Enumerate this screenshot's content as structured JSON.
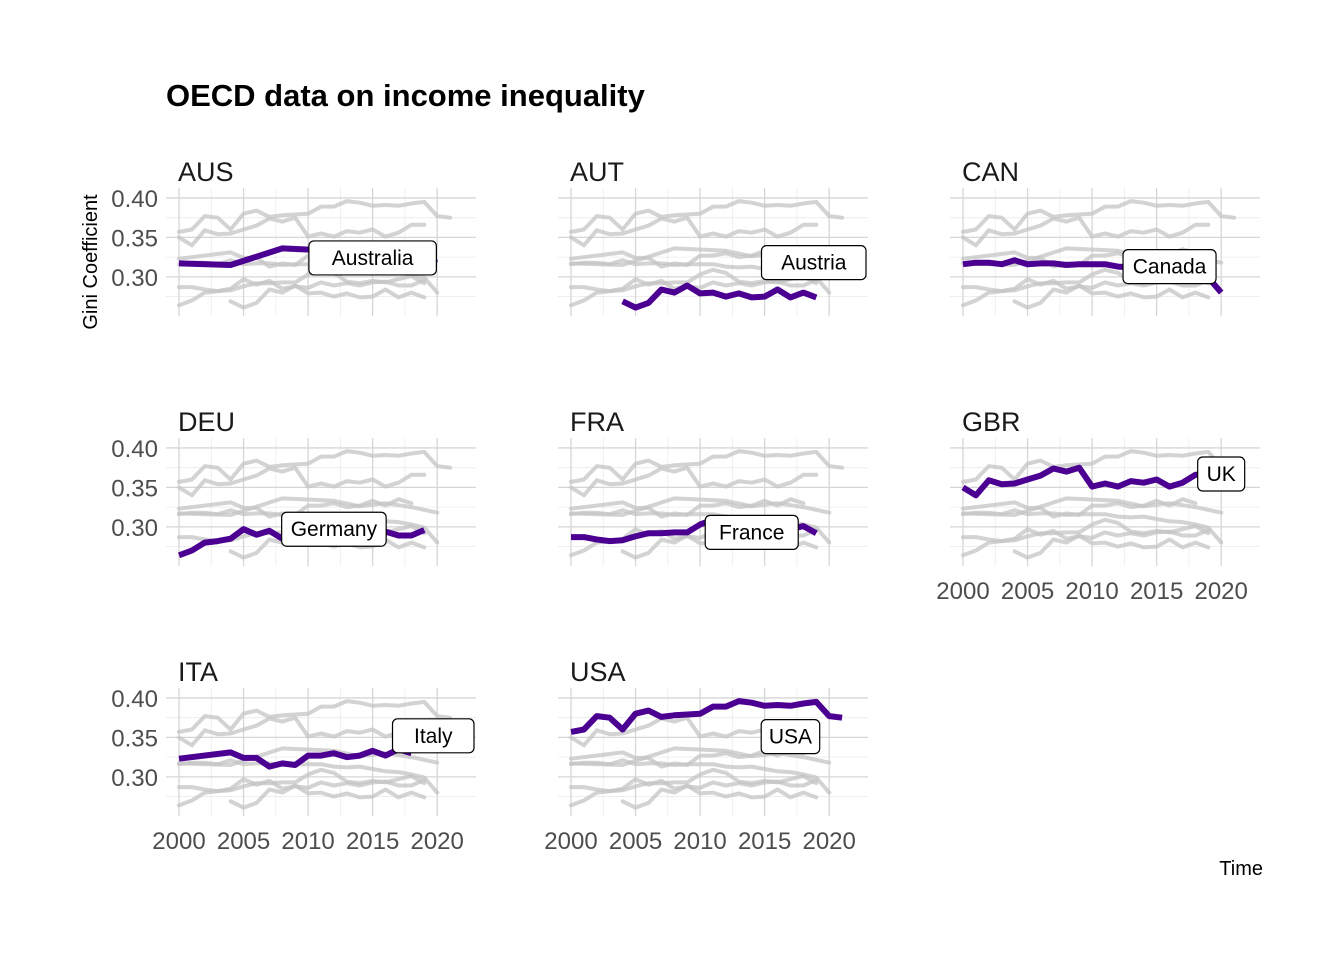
{
  "chart_data": {
    "type": "line",
    "title": "OECD data on income inequality",
    "xlabel": "Time",
    "ylabel": "Gini Coefficient",
    "xlim": [
      2000,
      2022
    ],
    "ylim": [
      0.258,
      0.405
    ],
    "x_ticks": [
      2000,
      2005,
      2010,
      2015,
      2020
    ],
    "y_ticks": [
      0.3,
      0.35,
      0.4
    ],
    "x_tick_labels": [
      "2000",
      "2005",
      "2010",
      "2015",
      "2020"
    ],
    "y_tick_labels": [
      "0.30",
      "0.35",
      "0.40"
    ],
    "grid": true,
    "colors": {
      "highlight": "#4b0092",
      "background_series": "#c4c4c4"
    },
    "facets": [
      {
        "code": "AUS",
        "label": "Australia"
      },
      {
        "code": "AUT",
        "label": "Austria"
      },
      {
        "code": "CAN",
        "label": "Canada"
      },
      {
        "code": "DEU",
        "label": "Germany"
      },
      {
        "code": "FRA",
        "label": "France"
      },
      {
        "code": "GBR",
        "label": "UK"
      },
      {
        "code": "ITA",
        "label": "Italy"
      },
      {
        "code": "USA",
        "label": "USA"
      }
    ],
    "series": [
      {
        "name": "AUS",
        "x": [
          2000,
          2004,
          2008,
          2012,
          2014,
          2016,
          2018,
          2020
        ],
        "y": [
          0.317,
          0.315,
          0.336,
          0.333,
          0.326,
          0.33,
          0.325,
          0.318
        ]
      },
      {
        "name": "AUT",
        "x": [
          2004,
          2005,
          2006,
          2007,
          2008,
          2009,
          2010,
          2011,
          2012,
          2013,
          2014,
          2015,
          2016,
          2017,
          2018,
          2019
        ],
        "y": [
          0.269,
          0.261,
          0.267,
          0.284,
          0.28,
          0.289,
          0.279,
          0.28,
          0.275,
          0.279,
          0.274,
          0.275,
          0.284,
          0.274,
          0.28,
          0.274
        ]
      },
      {
        "name": "CAN",
        "x": [
          2000,
          2001,
          2002,
          2003,
          2004,
          2005,
          2006,
          2007,
          2008,
          2009,
          2010,
          2011,
          2012,
          2013,
          2014,
          2015,
          2016,
          2017,
          2018,
          2019,
          2020
        ],
        "y": [
          0.316,
          0.318,
          0.318,
          0.316,
          0.321,
          0.316,
          0.317,
          0.317,
          0.315,
          0.316,
          0.316,
          0.316,
          0.313,
          0.312,
          0.313,
          0.31,
          0.307,
          0.306,
          0.303,
          0.299,
          0.28
        ]
      },
      {
        "name": "DEU",
        "x": [
          2000,
          2001,
          2002,
          2003,
          2004,
          2005,
          2006,
          2007,
          2008,
          2009,
          2010,
          2011,
          2012,
          2013,
          2014,
          2015,
          2016,
          2017,
          2018,
          2019
        ],
        "y": [
          0.264,
          0.27,
          0.28,
          0.282,
          0.285,
          0.297,
          0.29,
          0.295,
          0.285,
          0.288,
          0.286,
          0.293,
          0.289,
          0.292,
          0.289,
          0.293,
          0.294,
          0.289,
          0.289,
          0.296
        ]
      },
      {
        "name": "FRA",
        "x": [
          2000,
          2001,
          2002,
          2003,
          2004,
          2005,
          2006,
          2007,
          2008,
          2009,
          2010,
          2011,
          2012,
          2013,
          2014,
          2015,
          2016,
          2017,
          2018,
          2019
        ],
        "y": [
          0.287,
          0.287,
          0.284,
          0.282,
          0.283,
          0.288,
          0.292,
          0.292,
          0.293,
          0.293,
          0.303,
          0.309,
          0.305,
          0.294,
          0.292,
          0.295,
          0.293,
          0.297,
          0.301,
          0.292
        ]
      },
      {
        "name": "GBR",
        "x": [
          2000,
          2001,
          2002,
          2003,
          2004,
          2005,
          2006,
          2007,
          2008,
          2009,
          2010,
          2011,
          2012,
          2013,
          2014,
          2015,
          2016,
          2017,
          2018,
          2019
        ],
        "y": [
          0.35,
          0.34,
          0.359,
          0.354,
          0.355,
          0.36,
          0.365,
          0.374,
          0.37,
          0.375,
          0.351,
          0.355,
          0.351,
          0.358,
          0.356,
          0.36,
          0.351,
          0.356,
          0.366,
          0.366
        ]
      },
      {
        "name": "ITA",
        "x": [
          2000,
          2004,
          2005,
          2006,
          2007,
          2008,
          2009,
          2010,
          2011,
          2012,
          2013,
          2014,
          2015,
          2016,
          2017,
          2018
        ],
        "y": [
          0.323,
          0.331,
          0.324,
          0.324,
          0.313,
          0.317,
          0.315,
          0.327,
          0.327,
          0.33,
          0.325,
          0.327,
          0.333,
          0.327,
          0.335,
          0.33
        ]
      },
      {
        "name": "USA",
        "x": [
          2000,
          2001,
          2002,
          2003,
          2004,
          2005,
          2006,
          2007,
          2008,
          2009,
          2010,
          2011,
          2012,
          2013,
          2014,
          2015,
          2016,
          2017,
          2018,
          2019,
          2020,
          2021
        ],
        "y": [
          0.357,
          0.36,
          0.377,
          0.375,
          0.36,
          0.38,
          0.384,
          0.376,
          0.378,
          0.379,
          0.38,
          0.389,
          0.389,
          0.396,
          0.394,
          0.39,
          0.391,
          0.39,
          0.393,
          0.395,
          0.377,
          0.375
        ]
      }
    ]
  }
}
